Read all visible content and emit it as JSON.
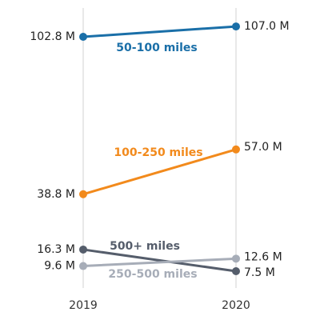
{
  "chart_data": {
    "type": "line",
    "chart_style": "slope",
    "x": [
      "2019",
      "2020"
    ],
    "ylim": [
      0,
      110
    ],
    "grid": false,
    "legend": "inline series labels",
    "series": [
      {
        "name": "50-100 miles",
        "values": [
          102.8,
          107.0
        ],
        "labels": [
          "102.8 M",
          "107.0 M"
        ],
        "color": "#1a6fa8"
      },
      {
        "name": "100-250 miles",
        "values": [
          38.8,
          57.0
        ],
        "labels": [
          "38.8 M",
          "57.0 M"
        ],
        "color": "#f28a1c"
      },
      {
        "name": "500+ miles",
        "values": [
          16.3,
          7.5
        ],
        "labels": [
          "16.3 M",
          "7.5 M"
        ],
        "color": "#555d6b"
      },
      {
        "name": "250-500 miles",
        "values": [
          9.6,
          12.6
        ],
        "labels": [
          "9.6 M",
          "12.6 M"
        ],
        "color": "#a7adb8"
      }
    ]
  }
}
